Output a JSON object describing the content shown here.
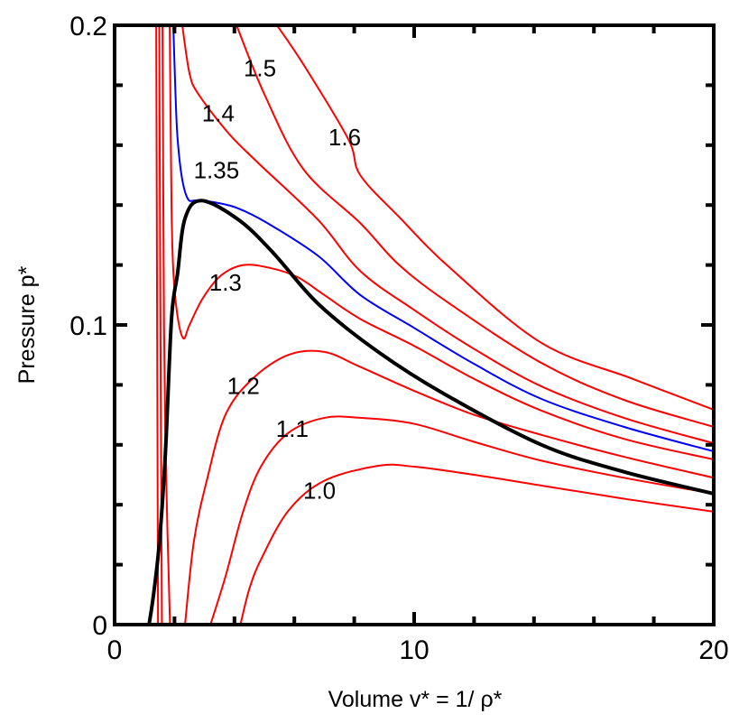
{
  "chart_data": {
    "type": "line",
    "title": "",
    "xlabel": "Volume v* = 1/ ρ*",
    "ylabel": "Pressure p*",
    "xlim": [
      0,
      20
    ],
    "ylim": [
      0,
      0.2
    ],
    "x_major_ticks": [
      0,
      10,
      20
    ],
    "x_tick_labels": [
      "0",
      "10",
      "20"
    ],
    "x_minor_step": 2,
    "y_major_ticks": [
      0,
      0.1,
      0.2
    ],
    "y_tick_labels": [
      "0",
      "0.1",
      "0.2"
    ],
    "y_minor_step": 0.02,
    "grid": false,
    "colors": {
      "isotherm": "#ff0000",
      "critical": "#0000ff",
      "coexistence": "#000000"
    },
    "series": [
      {
        "name": "1.0",
        "label": "1.0",
        "color": "#ff0000",
        "label_at": [
          6.84,
          0.045
        ],
        "segments": [
          [
            [
              1.39,
              0.2
            ],
            [
              1.42,
              0.1
            ],
            [
              1.45,
              0
            ]
          ],
          [
            [
              4.2,
              0
            ],
            [
              4.5,
              0.012
            ],
            [
              4.9,
              0.022
            ],
            [
              5.8,
              0.038
            ],
            [
              7.0,
              0.048
            ],
            [
              8.8,
              0.053
            ],
            [
              10,
              0.0527
            ],
            [
              12,
              0.05
            ],
            [
              14.25,
              0.0464
            ],
            [
              17,
              0.042
            ],
            [
              20,
              0.0377
            ]
          ]
        ]
      },
      {
        "name": "1.1",
        "label": "1.1",
        "color": "#ff0000",
        "label_at": [
          5.93,
          0.0657
        ],
        "segments": [
          [
            [
              1.49,
              0.2
            ],
            [
              1.53,
              0.1
            ],
            [
              1.58,
              0
            ]
          ],
          [
            [
              3.2,
              0
            ],
            [
              3.7,
              0.016
            ],
            [
              4.3,
              0.038
            ],
            [
              4.9,
              0.053
            ],
            [
              5.8,
              0.064
            ],
            [
              7.0,
              0.069
            ],
            [
              8.2,
              0.069
            ],
            [
              10,
              0.067
            ],
            [
              12,
              0.061
            ],
            [
              14.25,
              0.0547
            ],
            [
              17,
              0.049
            ],
            [
              20,
              0.0437
            ]
          ]
        ]
      },
      {
        "name": "1.2",
        "label": "1.2",
        "color": "#ff0000",
        "label_at": [
          4.3,
          0.08
        ],
        "segments": [
          [
            [
              1.6,
              0.2
            ],
            [
              1.65,
              0.1
            ],
            [
              1.72,
              0.05
            ],
            [
              1.85,
              0
            ]
          ],
          [
            [
              2.35,
              0
            ],
            [
              2.65,
              0.028
            ],
            [
              3.1,
              0.049
            ],
            [
              3.7,
              0.07
            ],
            [
              4.6,
              0.082
            ],
            [
              5.8,
              0.09
            ],
            [
              7.0,
              0.091
            ],
            [
              8.2,
              0.086
            ],
            [
              10,
              0.078
            ],
            [
              12,
              0.07
            ],
            [
              14.25,
              0.0633
            ],
            [
              17,
              0.056
            ],
            [
              20,
              0.049
            ]
          ]
        ]
      },
      {
        "name": "1.3",
        "label": "1.3",
        "color": "#ff0000",
        "label_at": [
          3.7,
          0.1145
        ],
        "segments": [
          [
            [
              1.84,
              0.2
            ],
            [
              1.9,
              0.14
            ],
            [
              1.96,
              0.118
            ],
            [
              2.1,
              0.103
            ],
            [
              2.3,
              0.0955
            ],
            [
              2.5,
              0.1
            ],
            [
              2.95,
              0.109
            ],
            [
              3.55,
              0.1165
            ],
            [
              4.3,
              0.12
            ],
            [
              5.2,
              0.119
            ],
            [
              6.1,
              0.116
            ],
            [
              7.0,
              0.11
            ],
            [
              8.2,
              0.102
            ],
            [
              10,
              0.093
            ],
            [
              12,
              0.082
            ],
            [
              14.25,
              0.0714
            ],
            [
              17,
              0.062
            ],
            [
              20,
              0.0551
            ]
          ]
        ]
      },
      {
        "name": "1.35",
        "label": "1.35",
        "color": "#0000ff",
        "label_at": [
          3.4,
          0.152
        ],
        "segments": [
          [
            [
              1.96,
              0.2
            ],
            [
              2.03,
              0.178
            ],
            [
              2.1,
              0.1625
            ],
            [
              2.25,
              0.149
            ],
            [
              2.45,
              0.142
            ],
            [
              2.7,
              0.1415
            ],
            [
              3.3,
              0.141
            ],
            [
              4.1,
              0.139
            ],
            [
              5.1,
              0.134
            ],
            [
              6.8,
              0.123
            ],
            [
              8.2,
              0.11
            ],
            [
              10,
              0.099
            ],
            [
              12,
              0.087
            ],
            [
              14.25,
              0.0753
            ],
            [
              17,
              0.066
            ],
            [
              20,
              0.0578
            ]
          ]
        ]
      },
      {
        "name": "1.4",
        "label": "1.4",
        "color": "#ff0000",
        "label_at": [
          3.46,
          0.171
        ],
        "segments": [
          [
            [
              2.26,
              0.2
            ],
            [
              2.5,
              0.184
            ],
            [
              2.8,
              0.177
            ],
            [
              3.8,
              0.164
            ],
            [
              4.8,
              0.154
            ],
            [
              6.8,
              0.135
            ],
            [
              8.2,
              0.118
            ],
            [
              10,
              0.105
            ],
            [
              12,
              0.092
            ],
            [
              14.25,
              0.0795
            ],
            [
              17,
              0.069
            ],
            [
              20,
              0.0605
            ]
          ]
        ]
      },
      {
        "name": "1.5",
        "label": "1.5",
        "color": "#ff0000",
        "label_at": [
          4.85,
          0.186
        ],
        "segments": [
          [
            [
              4.07,
              0.2
            ],
            [
              5.0,
              0.177
            ],
            [
              6.3,
              0.152
            ],
            [
              8.2,
              0.134
            ],
            [
              9.5,
              0.12
            ],
            [
              11.2,
              0.107
            ],
            [
              14.25,
              0.0873
            ],
            [
              17,
              0.075
            ],
            [
              20,
              0.066
            ]
          ]
        ]
      },
      {
        "name": "1.6",
        "label": "1.6",
        "color": "#ff0000",
        "label_at": [
          7.68,
          0.163
        ],
        "segments": [
          [
            [
              5.42,
              0.2
            ],
            [
              6.3,
              0.187
            ],
            [
              7.8,
              0.162
            ],
            [
              8.2,
              0.15
            ],
            [
              9.5,
              0.136
            ],
            [
              11.2,
              0.119
            ],
            [
              14.25,
              0.094
            ],
            [
              17.3,
              0.082
            ],
            [
              20,
              0.0717
            ]
          ]
        ]
      },
      {
        "name": "coexistence",
        "label": "",
        "color": "#000000",
        "segments": [
          [
            [
              1.15,
              0
            ],
            [
              1.3,
              0.01
            ],
            [
              1.5,
              0.028
            ],
            [
              1.7,
              0.058
            ],
            [
              1.9,
              0.102
            ],
            [
              2.1,
              0.117
            ],
            [
              2.35,
              0.1355
            ],
            [
              2.9,
              0.1415
            ],
            [
              4.15,
              0.135
            ],
            [
              5.3,
              0.124
            ],
            [
              6.8,
              0.107
            ],
            [
              8.8,
              0.091
            ],
            [
              11,
              0.077
            ],
            [
              14.25,
              0.06
            ],
            [
              17,
              0.051
            ],
            [
              20,
              0.0437
            ]
          ]
        ]
      }
    ]
  }
}
